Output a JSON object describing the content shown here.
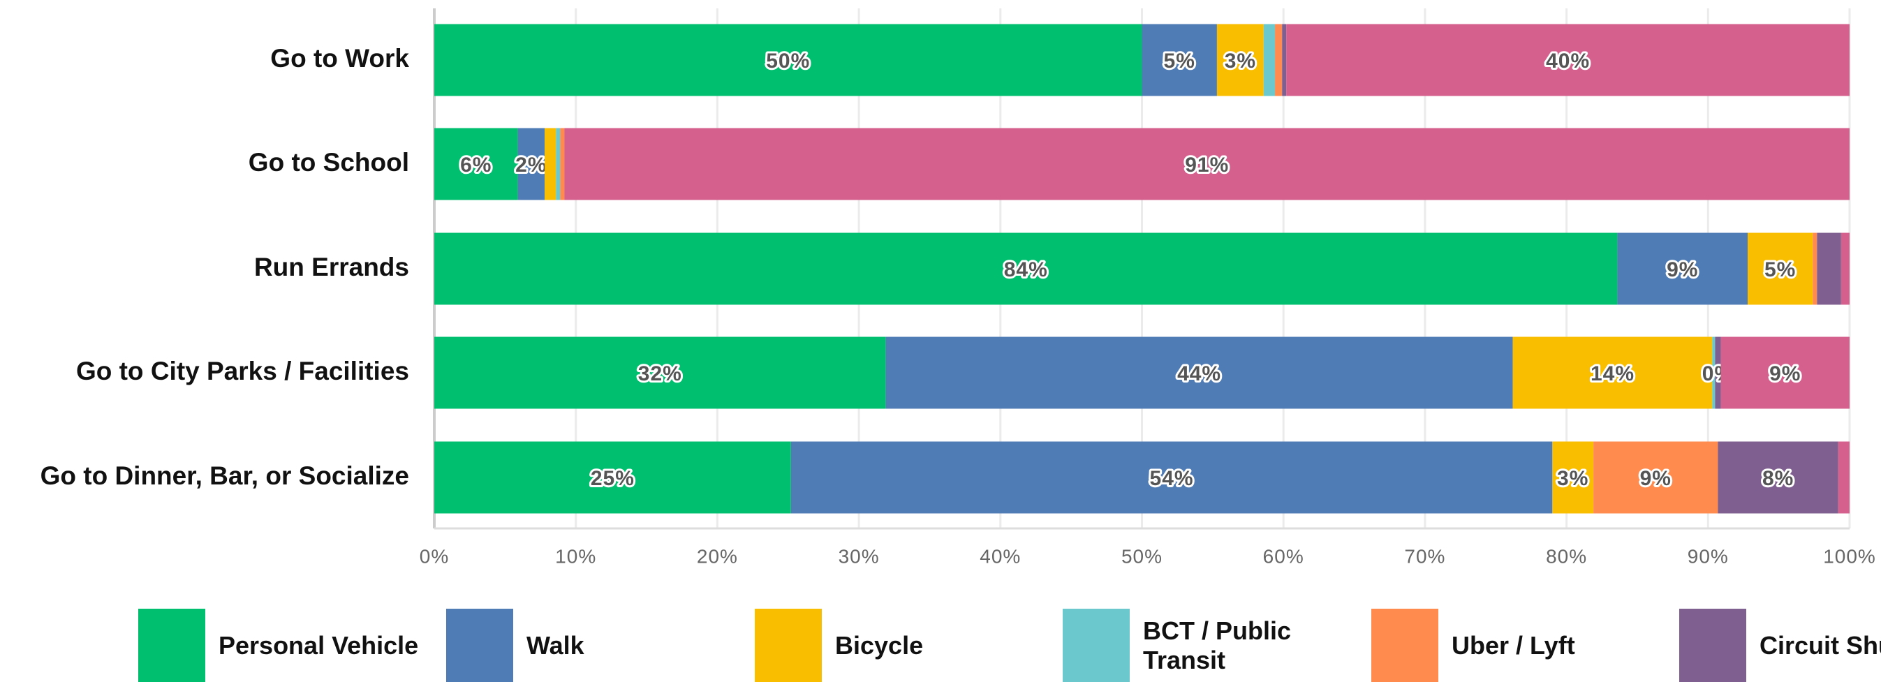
{
  "chart_data": {
    "type": "stacked_bar_horizontal",
    "categories": [
      "Go to Work",
      "Go to School",
      "Run Errands",
      "Go to City Parks / Facilities",
      "Go to Dinner, Bar, or Socialize"
    ],
    "series": [
      {
        "name": "Personal Vehicle",
        "color": "#00bf6f",
        "values": [
          50,
          5.9,
          83.6,
          31.9,
          25.2
        ],
        "value_labels": [
          "50%",
          "6%",
          "84%",
          "32%",
          "25%"
        ]
      },
      {
        "name": "Walk",
        "color": "#507cb6",
        "values": [
          5.3,
          1.9,
          9.2,
          44.3,
          53.8
        ],
        "value_labels": [
          "5%",
          "2%",
          "9%",
          "44%",
          "54%"
        ]
      },
      {
        "name": "Bicycle",
        "color": "#f9be00",
        "values": [
          3.3,
          0.8,
          4.6,
          14.1,
          2.9
        ],
        "value_labels": [
          "3%",
          null,
          "5%",
          "14%",
          "3%"
        ]
      },
      {
        "name": "BCT / Public Transit",
        "color": "#6bc8cd",
        "values": [
          0.8,
          0.3,
          0,
          0.2,
          0
        ],
        "value_labels": [
          null,
          null,
          null,
          null,
          null
        ]
      },
      {
        "name": "Uber / Lyft",
        "color": "#ff8b4f",
        "values": [
          0.5,
          0.3,
          0.3,
          0,
          8.8
        ],
        "value_labels": [
          null,
          null,
          null,
          null,
          "9%"
        ]
      },
      {
        "name": "Circuit Shuttle",
        "color": "#7f5f8f",
        "values": [
          0.3,
          0,
          1.7,
          0.4,
          8.5
        ],
        "value_labels": [
          null,
          null,
          null,
          "0%",
          "8%"
        ]
      },
      {
        "color": "#d5608e",
        "values": [
          39.8,
          90.8,
          0.6,
          9.1,
          0.8
        ],
        "value_labels": [
          "40%",
          "91%",
          null,
          "9%",
          null
        ]
      }
    ],
    "xlim": [
      0,
      100
    ],
    "xticks": [
      {
        "value": 0,
        "label": "0%"
      },
      {
        "value": 10,
        "label": "10%"
      },
      {
        "value": 20,
        "label": "20%"
      },
      {
        "value": 30,
        "label": "30%"
      },
      {
        "value": 40,
        "label": "40%"
      },
      {
        "value": 50,
        "label": "50%"
      },
      {
        "value": 60,
        "label": "60%"
      },
      {
        "value": 70,
        "label": "70%"
      },
      {
        "value": 80,
        "label": "80%"
      },
      {
        "value": 90,
        "label": "90%"
      },
      {
        "value": 100,
        "label": "100%"
      }
    ],
    "grid": true,
    "legend": "bottom"
  }
}
